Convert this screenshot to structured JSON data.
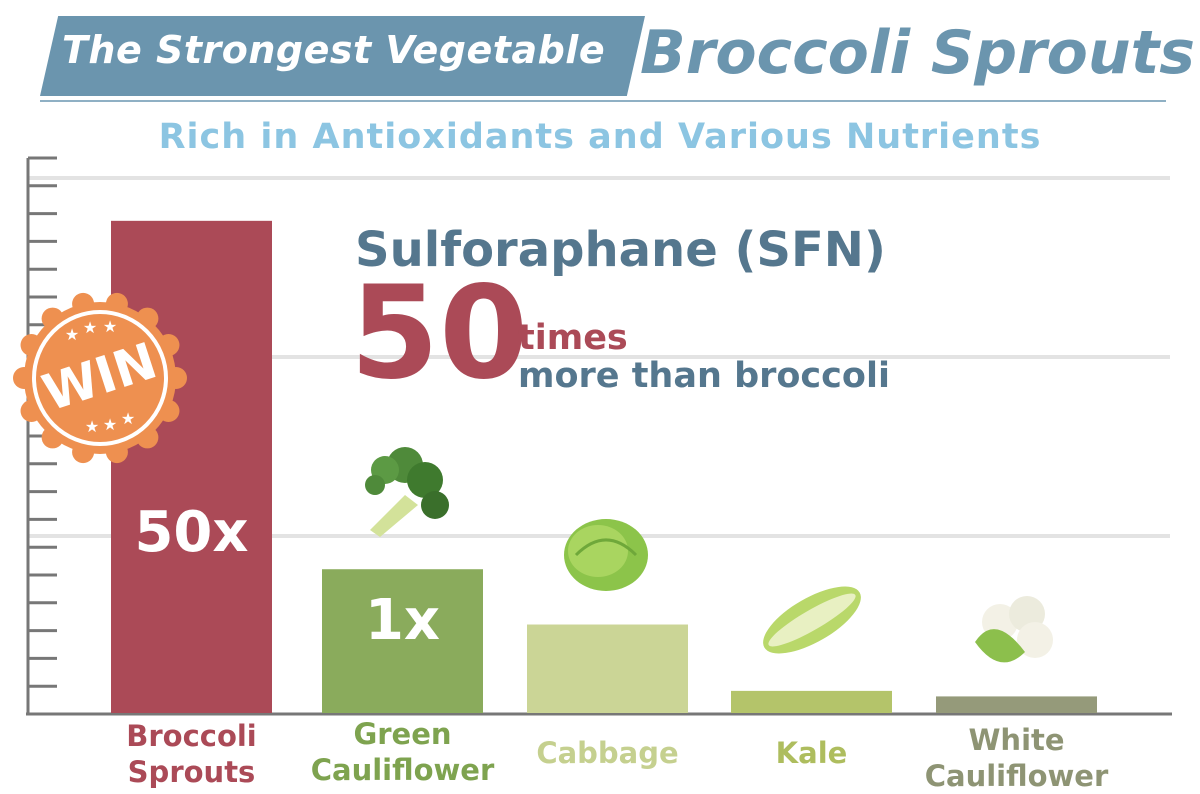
{
  "header": {
    "banner": "The Strongest Vegetable",
    "title": "Broccoli Sprouts",
    "subtitle": "Rich in Antioxidants and Various Nutrients"
  },
  "annotation": {
    "compound": "Sulforaphane (SFN)",
    "multiplier": "50",
    "unit": "times",
    "comparison": "more than broccoli"
  },
  "badge": {
    "text": "WIN",
    "color": "#ee9050"
  },
  "chart_data": {
    "type": "bar",
    "categories": [
      "Broccoli Sprouts",
      "Green Cauliflower",
      "Cabbage",
      "Kale",
      "White Cauliflower"
    ],
    "values": [
      89,
      26,
      16,
      4,
      3
    ],
    "value_scale": "relative bar height, % of axis (no numeric axis printed)",
    "data_labels": [
      "50x",
      "1x",
      "",
      "",
      ""
    ],
    "colors": [
      "#ab4a57",
      "#8aab5c",
      "#cbd596",
      "#b4c46a",
      "#959a7a"
    ],
    "label_colors": [
      "#ab4a57",
      "#7ea34f",
      "#c5d08f",
      "#aebd5e",
      "#8e9474"
    ],
    "grid": true,
    "ylim": [
      0,
      100
    ]
  }
}
